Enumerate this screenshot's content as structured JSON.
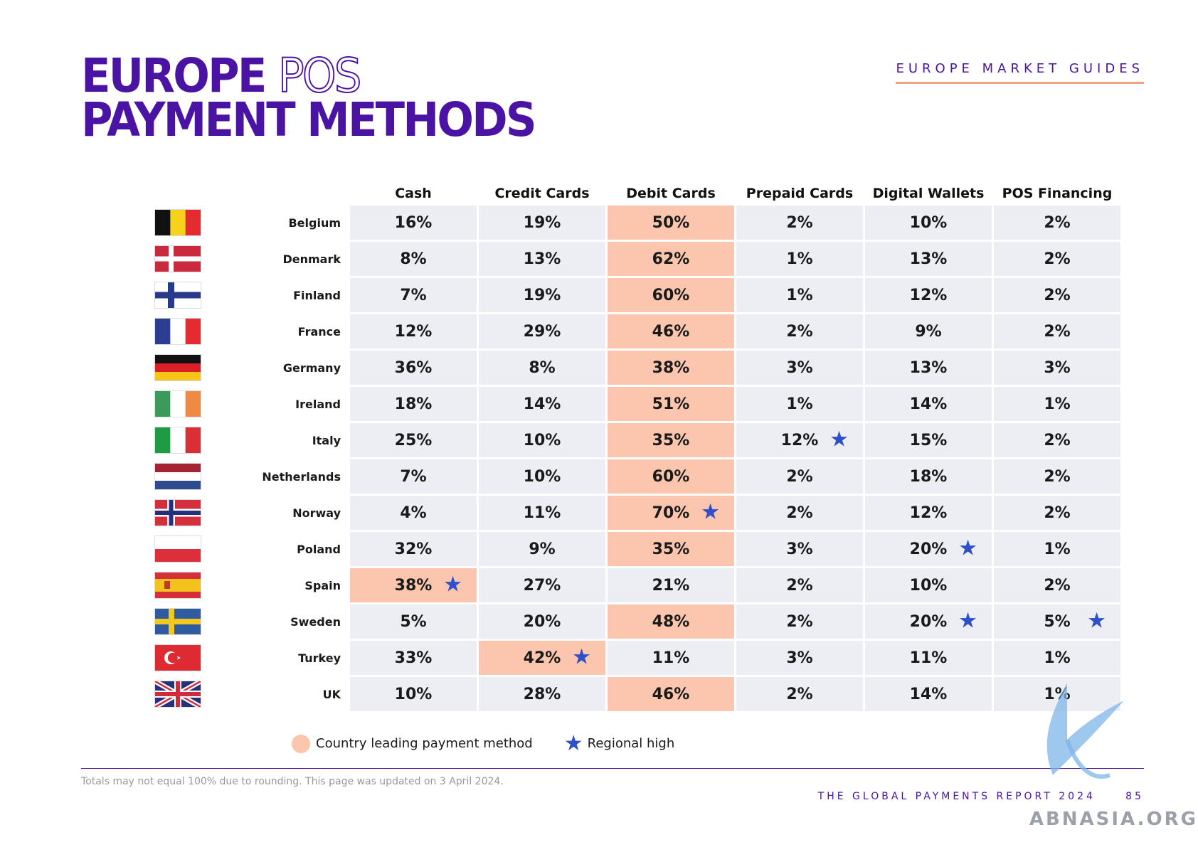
{
  "title": {
    "line1_solid": "EUROPE",
    "line1_outline": "POS",
    "line2": "PAYMENT METHODS"
  },
  "section_label": "EUROPE MARKET GUIDES",
  "columns": [
    "Cash",
    "Credit Cards",
    "Debit Cards",
    "Prepaid Cards",
    "Digital Wallets",
    "POS Financing"
  ],
  "colors": {
    "brand": "#4a13a4",
    "lead": "#fbc6ad",
    "cell": "#eceef3",
    "star": "#2f50c9"
  },
  "rows": [
    {
      "country": "Belgium",
      "flag": "belgium",
      "values": [
        "16%",
        "19%",
        "50%",
        "2%",
        "10%",
        "2%"
      ],
      "lead": 2,
      "highs": []
    },
    {
      "country": "Denmark",
      "flag": "denmark",
      "values": [
        "8%",
        "13%",
        "62%",
        "1%",
        "13%",
        "2%"
      ],
      "lead": 2,
      "highs": []
    },
    {
      "country": "Finland",
      "flag": "finland",
      "values": [
        "7%",
        "19%",
        "60%",
        "1%",
        "12%",
        "2%"
      ],
      "lead": 2,
      "highs": []
    },
    {
      "country": "France",
      "flag": "france",
      "values": [
        "12%",
        "29%",
        "46%",
        "2%",
        "9%",
        "2%"
      ],
      "lead": 2,
      "highs": []
    },
    {
      "country": "Germany",
      "flag": "germany",
      "values": [
        "36%",
        "8%",
        "38%",
        "3%",
        "13%",
        "3%"
      ],
      "lead": 2,
      "highs": []
    },
    {
      "country": "Ireland",
      "flag": "ireland",
      "values": [
        "18%",
        "14%",
        "51%",
        "1%",
        "14%",
        "1%"
      ],
      "lead": 2,
      "highs": []
    },
    {
      "country": "Italy",
      "flag": "italy",
      "values": [
        "25%",
        "10%",
        "35%",
        "12%",
        "15%",
        "2%"
      ],
      "lead": 2,
      "highs": [
        3
      ]
    },
    {
      "country": "Netherlands",
      "flag": "netherlands",
      "values": [
        "7%",
        "10%",
        "60%",
        "2%",
        "18%",
        "2%"
      ],
      "lead": 2,
      "highs": []
    },
    {
      "country": "Norway",
      "flag": "norway",
      "values": [
        "4%",
        "11%",
        "70%",
        "2%",
        "12%",
        "2%"
      ],
      "lead": 2,
      "highs": [
        2
      ]
    },
    {
      "country": "Poland",
      "flag": "poland",
      "values": [
        "32%",
        "9%",
        "35%",
        "3%",
        "20%",
        "1%"
      ],
      "lead": 2,
      "highs": [
        4
      ]
    },
    {
      "country": "Spain",
      "flag": "spain",
      "values": [
        "38%",
        "27%",
        "21%",
        "2%",
        "10%",
        "2%"
      ],
      "lead": 0,
      "highs": [
        0
      ]
    },
    {
      "country": "Sweden",
      "flag": "sweden",
      "values": [
        "5%",
        "20%",
        "48%",
        "2%",
        "20%",
        "5%"
      ],
      "lead": 2,
      "highs": [
        4,
        5
      ]
    },
    {
      "country": "Turkey",
      "flag": "turkey",
      "values": [
        "33%",
        "42%",
        "11%",
        "3%",
        "11%",
        "1%"
      ],
      "lead": 1,
      "highs": [
        1
      ]
    },
    {
      "country": "UK",
      "flag": "uk",
      "values": [
        "10%",
        "28%",
        "46%",
        "2%",
        "14%",
        "1%"
      ],
      "lead": 2,
      "highs": []
    }
  ],
  "legend": {
    "lead_label": "Country leading payment method",
    "high_label": "Regional high"
  },
  "footnote": "Totals may not equal 100% due to rounding. This page was updated on 3 April 2024.",
  "report_label": "THE GLOBAL PAYMENTS REPORT 2024",
  "page_number": "85",
  "watermark": "ABNASIA.ORG"
}
